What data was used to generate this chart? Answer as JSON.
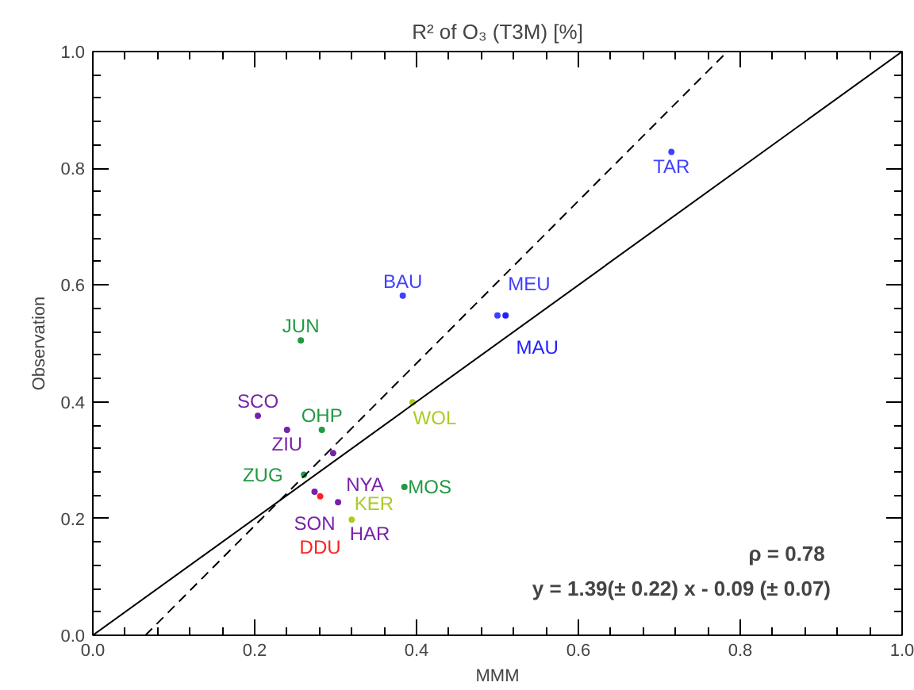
{
  "chart_data": {
    "type": "scatter",
    "title": "R² of O₃ (T3M) [%]",
    "xlabel": "MMM",
    "ylabel": "Observation",
    "xlim": [
      0,
      1
    ],
    "ylim": [
      0,
      1
    ],
    "xticks": [
      {
        "value": 0,
        "label": "0.0"
      },
      0.2,
      0.4,
      0.6,
      0.8,
      {
        "value": 1,
        "label": "1.0"
      }
    ],
    "yticks": [
      {
        "value": 0,
        "label": "0.0"
      },
      0.2,
      0.4,
      0.6,
      0.8,
      {
        "value": 1,
        "label": "1.0"
      }
    ],
    "grid": false,
    "series": [
      {
        "marker": "circle",
        "x": [
          0.715,
          0.383,
          0.5,
          0.51,
          0.257,
          0.204,
          0.24,
          0.283,
          0.297,
          0.395,
          0.261,
          0.274,
          0.281,
          0.303,
          0.32,
          0.385
        ],
        "values": [
          0.828,
          0.582,
          0.548,
          0.548,
          0.505,
          0.376,
          0.352,
          0.352,
          0.312,
          0.399,
          0.275,
          0.246,
          0.238,
          0.228,
          0.198,
          0.254
        ],
        "colors": [
          "#4040ff",
          "#4040ff",
          "#4040ff",
          "#2020ff",
          "#229944",
          "#7722aa",
          "#7722aa",
          "#229944",
          "#7722aa",
          "#aacc22",
          "#229944",
          "#7722aa",
          "#ff2020",
          "#7722aa",
          "#aacc22",
          "#229944"
        ],
        "value_labels": [
          "TAR",
          "BAU",
          "MEU",
          "MAU",
          "JUN",
          "SCO",
          "ZIU",
          "OHP",
          "NYA",
          "WOL",
          "ZUG",
          "SON",
          "DDU",
          "HAR",
          "KER",
          "MOS"
        ]
      },
      {
        "type": "line",
        "x": [
          0,
          1
        ],
        "values": [
          0,
          1
        ],
        "color": "#000000",
        "line_style": "solid"
      },
      {
        "type": "line",
        "x": [
          0.065,
          0.784
        ],
        "values": [
          0,
          1
        ],
        "color": "#000000",
        "line_style": "dashed"
      }
    ],
    "annotations": [
      "ρ  = 0.78",
      "y = 1.39(± 0.22) x - 0.09 (± 0.07)"
    ]
  }
}
